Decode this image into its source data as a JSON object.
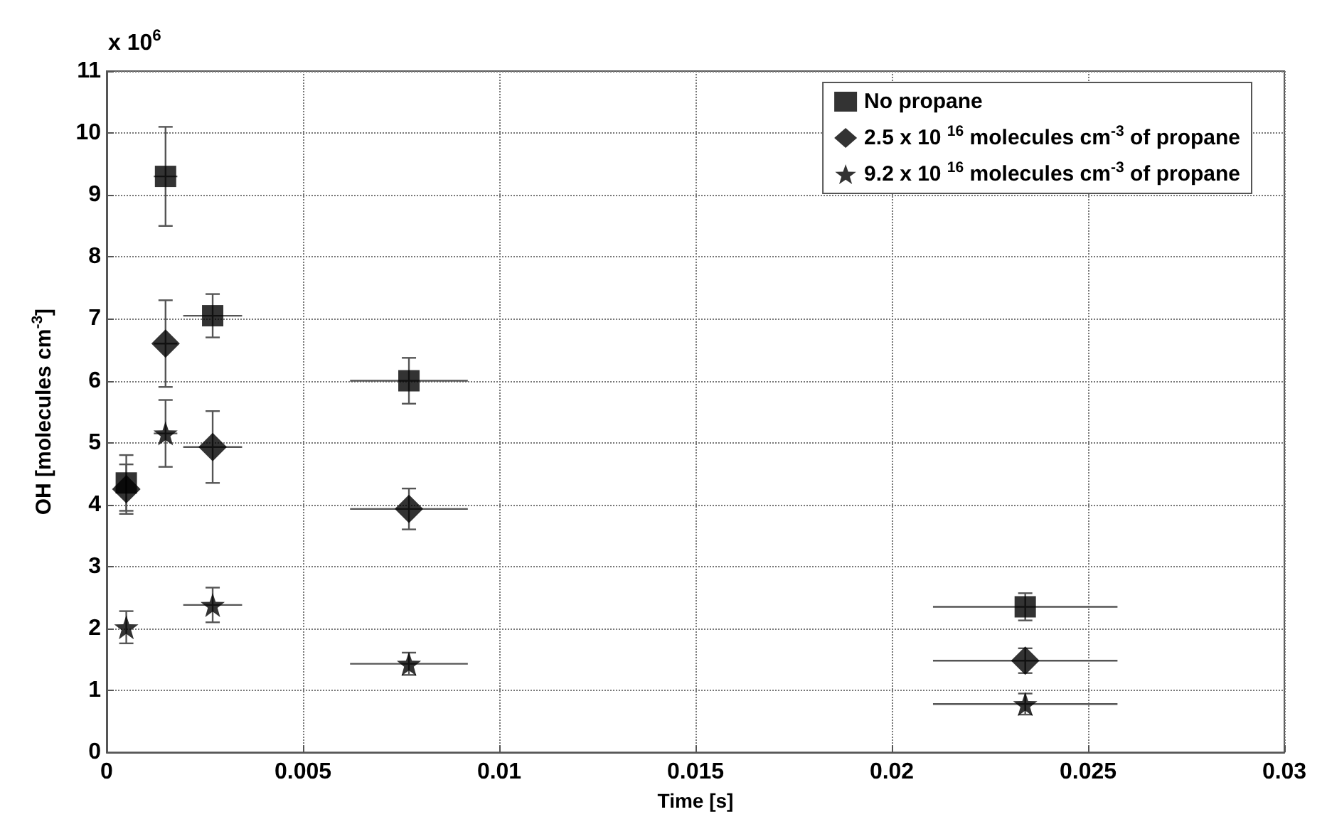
{
  "chart_data": {
    "type": "scatter",
    "xlabel": "Time [s]",
    "ylabel": "OH [molecules cm$^{-3}$]",
    "annotations": [
      "x 10$^{6}$"
    ],
    "xlim": [
      0,
      0.03
    ],
    "xticks": [
      0,
      0.005,
      0.01,
      0.015,
      0.02,
      0.025,
      0.03
    ],
    "ylim": [
      0,
      11
    ],
    "yticks": [
      0,
      1,
      2,
      3,
      4,
      5,
      6,
      7,
      8,
      9,
      10,
      11
    ],
    "grid": true,
    "legend": "top right",
    "series": [
      {
        "name": "No propane",
        "color": "#000000",
        "marker": "square",
        "x": [
          0.0005,
          0.0015,
          0.0027,
          0.0077,
          0.0234
        ],
        "values": [
          4.35,
          9.3,
          7.05,
          6.0,
          2.35
        ],
        "errors": [
          0.45,
          0.8,
          0.35,
          0.37,
          0.22
        ],
        "xerrors": [
          null,
          0.0003,
          0.00075,
          0.0015,
          0.00235
        ]
      },
      {
        "name": "2.5 x 10 $^{16}$ molecules cm$^{-3}$ of propane",
        "color": "#000000",
        "marker": "diamond",
        "x": [
          0.0005,
          0.0015,
          0.0027,
          0.0077,
          0.0234
        ],
        "values": [
          4.25,
          6.6,
          4.93,
          3.93,
          1.48
        ],
        "errors": [
          0.4,
          0.7,
          0.58,
          0.33,
          0.2
        ],
        "xerrors": [
          null,
          0.0003,
          0.00075,
          0.0015,
          0.00235
        ]
      },
      {
        "name": "9.2 x 10 $^{16}$ molecules cm$^{-3}$ of propane",
        "color": "#000000",
        "marker": "star",
        "x": [
          0.0005,
          0.0015,
          0.0027,
          0.0077,
          0.0234
        ],
        "values": [
          2.02,
          5.15,
          2.38,
          1.43,
          0.78
        ],
        "errors": [
          0.26,
          0.54,
          0.28,
          0.18,
          0.17
        ],
        "xerrors": [
          null,
          0.0003,
          0.00075,
          0.0015,
          0.00235
        ]
      }
    ]
  }
}
